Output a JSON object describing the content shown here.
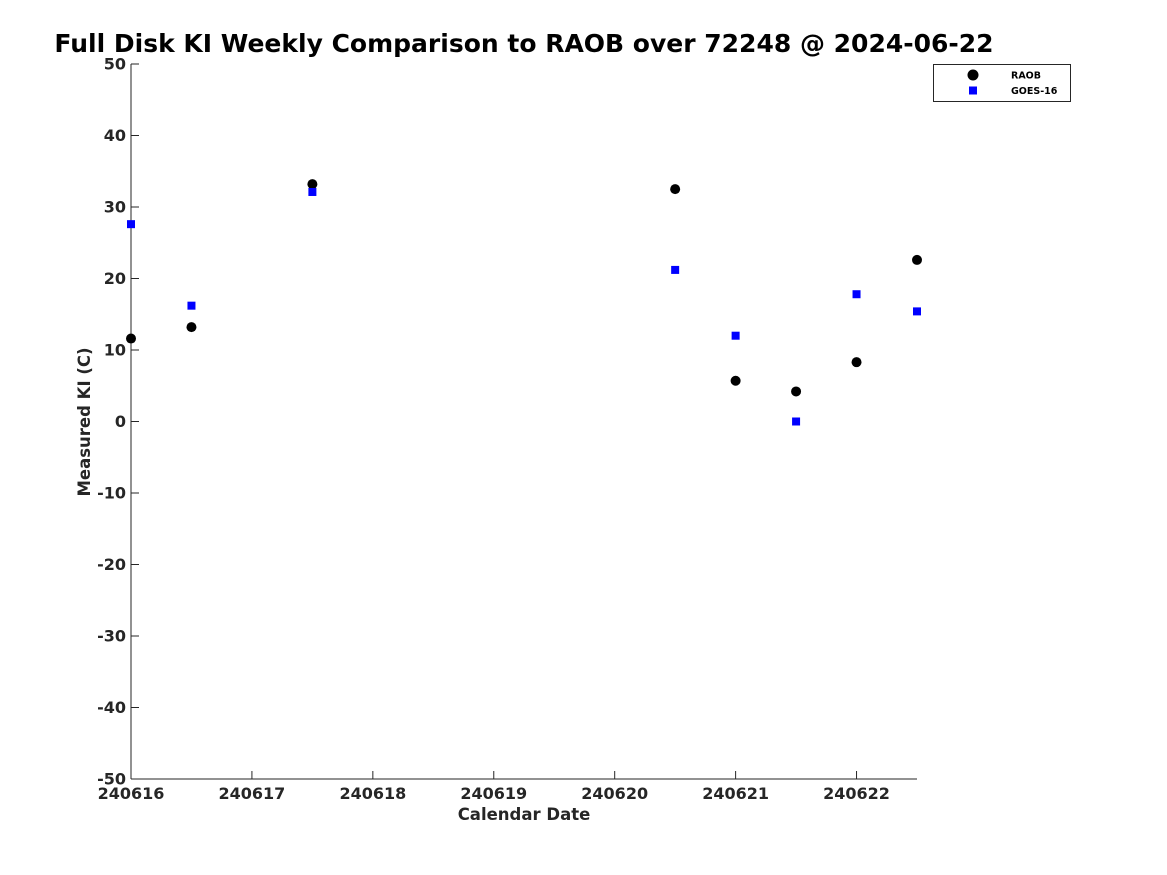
{
  "chart_data": {
    "type": "scatter",
    "title": "Full Disk KI Weekly Comparison to RAOB over 72248 @ 2024-06-22",
    "xlabel": "Calendar Date",
    "ylabel": "Measured KI (C)",
    "x_ticks": [
      "240616",
      "240617",
      "240618",
      "240619",
      "240620",
      "240621",
      "240622"
    ],
    "y_ticks": [
      50,
      40,
      30,
      20,
      10,
      0,
      -10,
      -20,
      -30,
      -40,
      -50
    ],
    "y_tick_labels": [
      "50",
      "40",
      "30",
      "20",
      "10",
      "0",
      "-10",
      "-20",
      "-30",
      "-40",
      "-50"
    ],
    "xlim": [
      "2024-06-16T00:00",
      "2024-06-22T12:00"
    ],
    "ylim": [
      -50,
      50
    ],
    "grid": false,
    "legend_position": "top-right",
    "series": [
      {
        "name": "RAOB",
        "marker": "circle",
        "color": "#000000",
        "points": [
          {
            "x": "2024-06-16T00:00",
            "y": 11.6
          },
          {
            "x": "2024-06-16T12:00",
            "y": 13.2
          },
          {
            "x": "2024-06-17T12:00",
            "y": 33.2
          },
          {
            "x": "2024-06-20T12:00",
            "y": 32.5
          },
          {
            "x": "2024-06-21T00:00",
            "y": 5.7
          },
          {
            "x": "2024-06-21T12:00",
            "y": 4.2
          },
          {
            "x": "2024-06-22T00:00",
            "y": 8.3
          },
          {
            "x": "2024-06-22T12:00",
            "y": 22.6
          }
        ]
      },
      {
        "name": "GOES-16",
        "marker": "square",
        "color": "#0000ff",
        "points": [
          {
            "x": "2024-06-16T00:00",
            "y": 27.6
          },
          {
            "x": "2024-06-16T12:00",
            "y": 16.2
          },
          {
            "x": "2024-06-17T12:00",
            "y": 32.1
          },
          {
            "x": "2024-06-20T12:00",
            "y": 21.2
          },
          {
            "x": "2024-06-21T00:00",
            "y": 12.0
          },
          {
            "x": "2024-06-21T12:00",
            "y": 0.0
          },
          {
            "x": "2024-06-22T00:00",
            "y": 17.8
          },
          {
            "x": "2024-06-22T12:00",
            "y": 15.4
          }
        ]
      }
    ]
  }
}
